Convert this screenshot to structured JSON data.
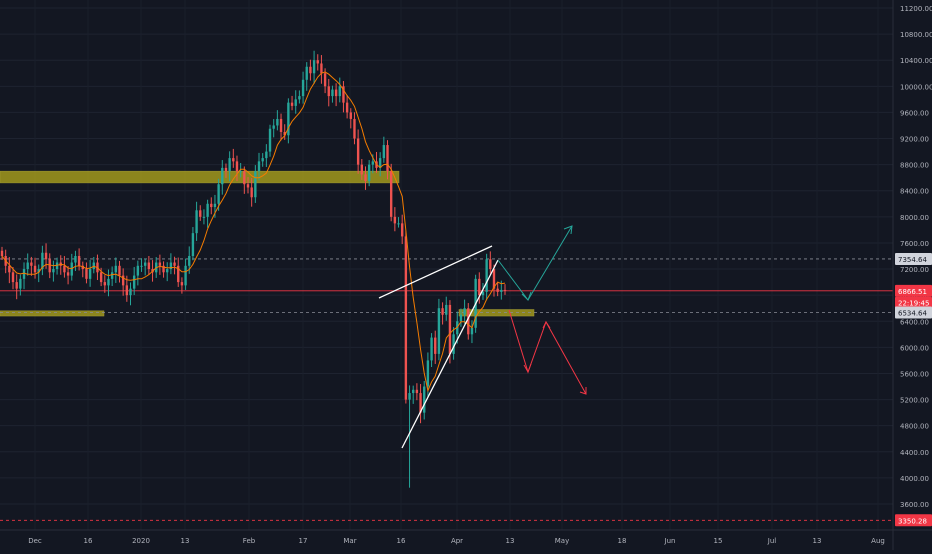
{
  "chart_data": {
    "type": "candlestick",
    "title": "",
    "y_axis": {
      "ticks": [
        11200,
        10800,
        10400,
        10000,
        9600,
        9200,
        8800,
        8400,
        8000,
        7600,
        7200,
        6800,
        6400,
        6000,
        5600,
        5200,
        4800,
        4400,
        4000,
        3600
      ],
      "labels": [
        "11200.00",
        "10800.00",
        "10400.00",
        "10000.00",
        "9600.00",
        "9200.00",
        "8800.00",
        "8400.00",
        "8000.00",
        "7600.00",
        "7200.00",
        "6800.00",
        "6400.00",
        "6000.00",
        "5600.00",
        "5200.00",
        "4800.00",
        "4400.00",
        "4000.00",
        "3600.00"
      ]
    },
    "x_axis": {
      "labels": [
        "Dec",
        "16",
        "2020",
        "13",
        "Feb",
        "17",
        "Mar",
        "16",
        "Apr",
        "13",
        "May",
        "18",
        "Jun",
        "15",
        "Jul",
        "13",
        "Aug"
      ]
    },
    "price_labels": {
      "upper_level": "7354.64",
      "current_price": "6866.51",
      "countdown": "22:19:45",
      "lower_level": "6534.64",
      "bottom_level": "3350.28"
    },
    "colors": {
      "background": "#131722",
      "up": "#26a69a",
      "down": "#ef5350",
      "ma": "#f57c00",
      "zone": "#b5aa1c",
      "current": "#f23645",
      "projection_up": "#26a69a",
      "projection_down": "#f23645",
      "wedge": "#ffffff"
    },
    "candles_close": [
      7400,
      7250,
      7150,
      7000,
      6900,
      7050,
      7200,
      7300,
      7250,
      7150,
      7200,
      7450,
      7350,
      7150,
      7200,
      7300,
      7250,
      7150,
      7100,
      7300,
      7400,
      7250,
      7200,
      7050,
      7200,
      7300,
      7150,
      7000,
      6950,
      7050,
      7150,
      7250,
      7100,
      6950,
      6800,
      6900,
      7100,
      7250,
      7250,
      7300,
      7200,
      7150,
      7300,
      7250,
      7150,
      7200,
      7300,
      7250,
      7000,
      6950,
      7250,
      7400,
      7750,
      8100,
      8000,
      8000,
      8200,
      8150,
      8200,
      8500,
      8750,
      8700,
      8900,
      8850,
      8700,
      8700,
      8500,
      8450,
      8300,
      8700,
      8850,
      8900,
      9000,
      9350,
      9400,
      9500,
      9300,
      9250,
      9750,
      9700,
      9800,
      9850,
      10100,
      10300,
      10200,
      10400,
      10350,
      10200,
      10000,
      9850,
      9950,
      9850,
      10000,
      9750,
      9600,
      9500,
      9200,
      8800,
      8650,
      8550,
      8800,
      8850,
      8750,
      8900,
      9100,
      8700,
      8000,
      7900,
      7900,
      7700,
      5200,
      5300,
      5350,
      5300,
      5000,
      5400,
      5800,
      6150,
      5900,
      6600,
      6500,
      6650,
      5900,
      6200,
      6400,
      6500,
      6600,
      6200,
      6300,
      7050,
      6800,
      6850,
      7350,
      7200,
      6900,
      6850,
      6880,
      6866
    ],
    "annotations": {
      "rising_wedge": true,
      "zones": 2,
      "projections": [
        "bullish breakout",
        "bearish breakdown"
      ]
    }
  }
}
